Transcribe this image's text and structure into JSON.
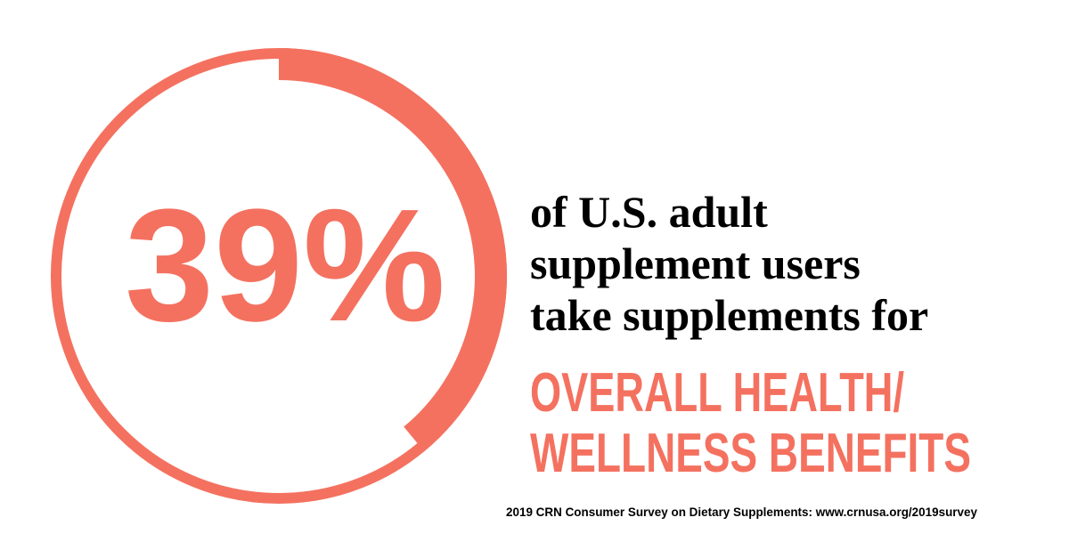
{
  "chart_data": {
    "type": "progress-ring",
    "values": [
      39
    ],
    "value_labels": [
      "39%"
    ],
    "ylim": [
      0,
      100
    ],
    "color": "#f47160",
    "text_lines": [
      "of U.S. adult",
      "supplement users",
      "take supplements for"
    ],
    "highlight_lines": [
      "OVERALL HEALTH/",
      "WELLNESS BENEFITS"
    ],
    "source": "2019 CRN Consumer Survey on Dietary Supplements: www.crnusa.org/2019survey"
  }
}
